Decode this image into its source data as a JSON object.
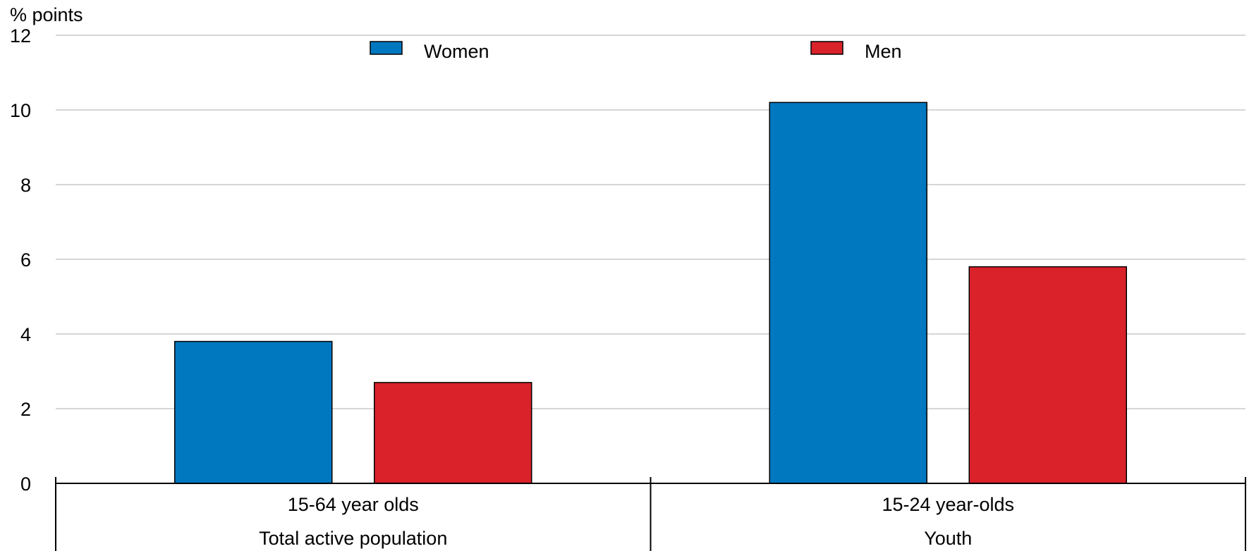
{
  "chart_data": {
    "type": "bar",
    "ylabel": "% points",
    "ylim": [
      0,
      12
    ],
    "yticks": [
      0,
      2,
      4,
      6,
      8,
      10,
      12
    ],
    "grid": true,
    "legend_position": "top-center",
    "groups": [
      {
        "category": "15-64 year olds",
        "group_label": "Total active population"
      },
      {
        "category": "15-24 year-olds",
        "group_label": "Youth"
      }
    ],
    "series": [
      {
        "name": "Women",
        "color": "#0078C0",
        "values": [
          3.8,
          10.2
        ]
      },
      {
        "name": "Men",
        "color": "#D9222A",
        "values": [
          2.7,
          5.8
        ]
      }
    ]
  }
}
